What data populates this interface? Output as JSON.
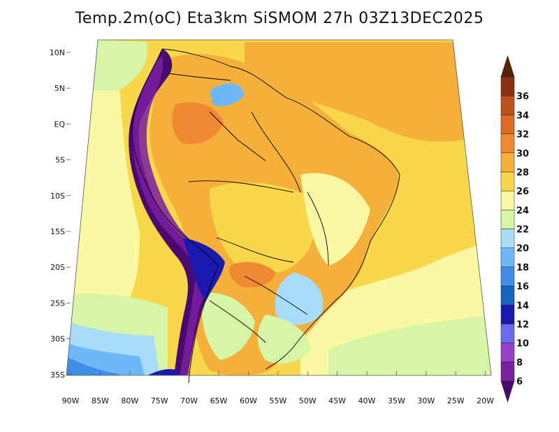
{
  "title": "Temp.2m(oC) Eta3km SiSMOM 27h 03Z13DEC2025",
  "lat_labels": [
    "10N",
    "5N",
    "EQ",
    "5S",
    "10S",
    "15S",
    "20S",
    "25S",
    "30S",
    "35S"
  ],
  "lon_labels": [
    "90W",
    "85W",
    "80W",
    "75W",
    "70W",
    "65W",
    "60W",
    "55W",
    "50W",
    "45W",
    "40W",
    "35W",
    "30W",
    "25W",
    "20W"
  ],
  "colorbar": {
    "labels": [
      "6",
      "8",
      "10",
      "12",
      "14",
      "16",
      "18",
      "20",
      "22",
      "24",
      "26",
      "28",
      "30",
      "32",
      "34",
      "36"
    ],
    "colors": [
      "#7a1fa2",
      "#9a3fcc",
      "#6b6bf0",
      "#1a1ab0",
      "#1565c0",
      "#3f8fe8",
      "#6fb8f7",
      "#a8dcf8",
      "#d6f5a6",
      "#fbf8a3",
      "#f9d74a",
      "#f5b03c",
      "#f08a32",
      "#e06a22",
      "#c0501e",
      "#8a3310"
    ],
    "end_low_color": "#4b0a70",
    "end_high_color": "#5a2008"
  }
}
